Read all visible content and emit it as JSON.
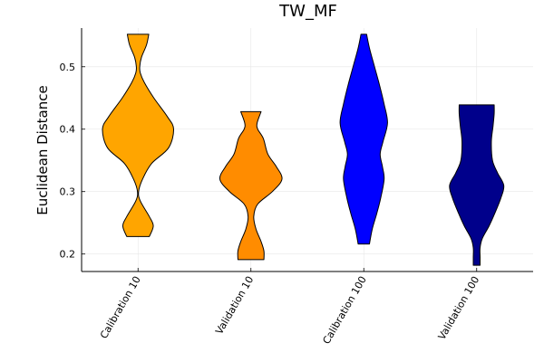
{
  "chart_data": {
    "type": "violin",
    "title": "TW_MF",
    "xlabel": "",
    "ylabel": "Euclidean Distance",
    "ylim": [
      0.172,
      0.562
    ],
    "yticks": [
      0.2,
      0.3,
      0.4,
      0.5
    ],
    "ytick_labels": [
      "0.2",
      "0.3",
      "0.4",
      "0.5"
    ],
    "grid": true,
    "legend": "none",
    "categories": [
      "Calibration 10",
      "Validation 10",
      "Calibration 100",
      "Validation 100"
    ],
    "series": [
      {
        "category": "Calibration 10",
        "color": "#FFA500",
        "min": 0.228,
        "max": 0.552,
        "profile": [
          [
            0.228,
            0.2
          ],
          [
            0.245,
            0.27
          ],
          [
            0.26,
            0.2
          ],
          [
            0.285,
            0.04
          ],
          [
            0.3,
            0.01
          ],
          [
            0.32,
            0.08
          ],
          [
            0.345,
            0.24
          ],
          [
            0.37,
            0.54
          ],
          [
            0.4,
            0.63
          ],
          [
            0.42,
            0.52
          ],
          [
            0.45,
            0.28
          ],
          [
            0.475,
            0.11
          ],
          [
            0.49,
            0.04
          ],
          [
            0.5,
            0.03
          ],
          [
            0.515,
            0.06
          ],
          [
            0.535,
            0.15
          ],
          [
            0.552,
            0.19
          ]
        ]
      },
      {
        "category": "Validation 10",
        "color": "#FF8C00",
        "min": 0.191,
        "max": 0.428,
        "profile": [
          [
            0.191,
            0.23
          ],
          [
            0.205,
            0.23
          ],
          [
            0.22,
            0.18
          ],
          [
            0.24,
            0.09
          ],
          [
            0.26,
            0.05
          ],
          [
            0.28,
            0.12
          ],
          [
            0.3,
            0.38
          ],
          [
            0.32,
            0.55
          ],
          [
            0.34,
            0.45
          ],
          [
            0.36,
            0.3
          ],
          [
            0.385,
            0.22
          ],
          [
            0.4,
            0.12
          ],
          [
            0.41,
            0.11
          ],
          [
            0.428,
            0.18
          ]
        ]
      },
      {
        "category": "Calibration 100",
        "color": "#0000FF",
        "min": 0.216,
        "max": 0.552,
        "profile": [
          [
            0.216,
            0.1
          ],
          [
            0.24,
            0.15
          ],
          [
            0.265,
            0.23
          ],
          [
            0.29,
            0.3
          ],
          [
            0.32,
            0.36
          ],
          [
            0.34,
            0.33
          ],
          [
            0.36,
            0.29
          ],
          [
            0.38,
            0.34
          ],
          [
            0.41,
            0.42
          ],
          [
            0.44,
            0.36
          ],
          [
            0.47,
            0.28
          ],
          [
            0.5,
            0.19
          ],
          [
            0.53,
            0.1
          ],
          [
            0.552,
            0.05
          ]
        ]
      },
      {
        "category": "Validation 100",
        "color": "#00008B",
        "min": 0.182,
        "max": 0.439,
        "profile": [
          [
            0.182,
            0.06
          ],
          [
            0.195,
            0.06
          ],
          [
            0.21,
            0.06
          ],
          [
            0.225,
            0.1
          ],
          [
            0.245,
            0.22
          ],
          [
            0.265,
            0.32
          ],
          [
            0.29,
            0.43
          ],
          [
            0.31,
            0.48
          ],
          [
            0.33,
            0.37
          ],
          [
            0.35,
            0.28
          ],
          [
            0.38,
            0.26
          ],
          [
            0.405,
            0.29
          ],
          [
            0.425,
            0.31
          ],
          [
            0.439,
            0.31
          ]
        ]
      }
    ]
  }
}
